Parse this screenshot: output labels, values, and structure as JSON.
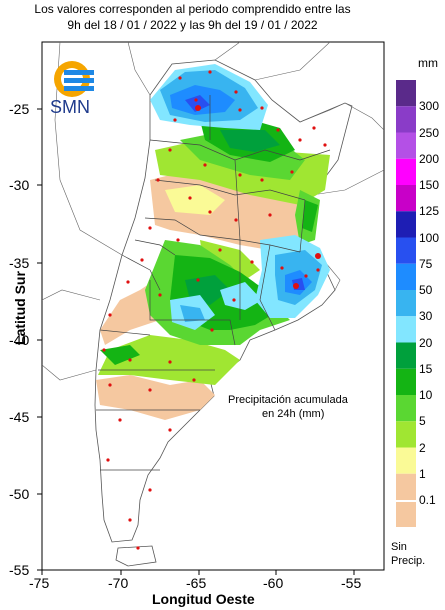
{
  "header": {
    "line1": "Los valores corresponden al periodo comprendido entre las",
    "line2": "9h del 18 / 01 / 2022  y las 9h del 19 / 01 / 2022"
  },
  "logo": {
    "text": "SMN"
  },
  "axes": {
    "xlabel": "Longitud Oeste",
    "ylabel": "Latitud Sur",
    "xticks": [
      "-75",
      "-70",
      "-65",
      "-60",
      "-55"
    ],
    "yticks": [
      "-25",
      "-30",
      "-35",
      "-40",
      "-45",
      "-50",
      "-55"
    ]
  },
  "annotation": {
    "line1": "Precipitación acumulada",
    "line2": "en 24h (mm)"
  },
  "legend": {
    "unit": "mm",
    "levels": [
      {
        "label": "300",
        "color": "#5a2a8a"
      },
      {
        "label": "250",
        "color": "#8a3cc8"
      },
      {
        "label": "200",
        "color": "#b450e6"
      },
      {
        "label": "150",
        "color": "#ff00ff"
      },
      {
        "label": "125",
        "color": "#c800c8"
      },
      {
        "label": "100",
        "color": "#1e1eb4"
      },
      {
        "label": "75",
        "color": "#2850f0"
      },
      {
        "label": "50",
        "color": "#1e8cff"
      },
      {
        "label": "30",
        "color": "#38b4f0"
      },
      {
        "label": "20",
        "color": "#82e6ff"
      },
      {
        "label": "15",
        "color": "#00a03c"
      },
      {
        "label": "10",
        "color": "#14b414"
      },
      {
        "label": "5",
        "color": "#5ad732"
      },
      {
        "label": "2",
        "color": "#a0e632"
      },
      {
        "label": "1",
        "color": "#fafa96"
      },
      {
        "label": "0.1",
        "color": "#f5c8a0"
      }
    ],
    "no_precip_line1": "Sin",
    "no_precip_line2": "Precip."
  }
}
